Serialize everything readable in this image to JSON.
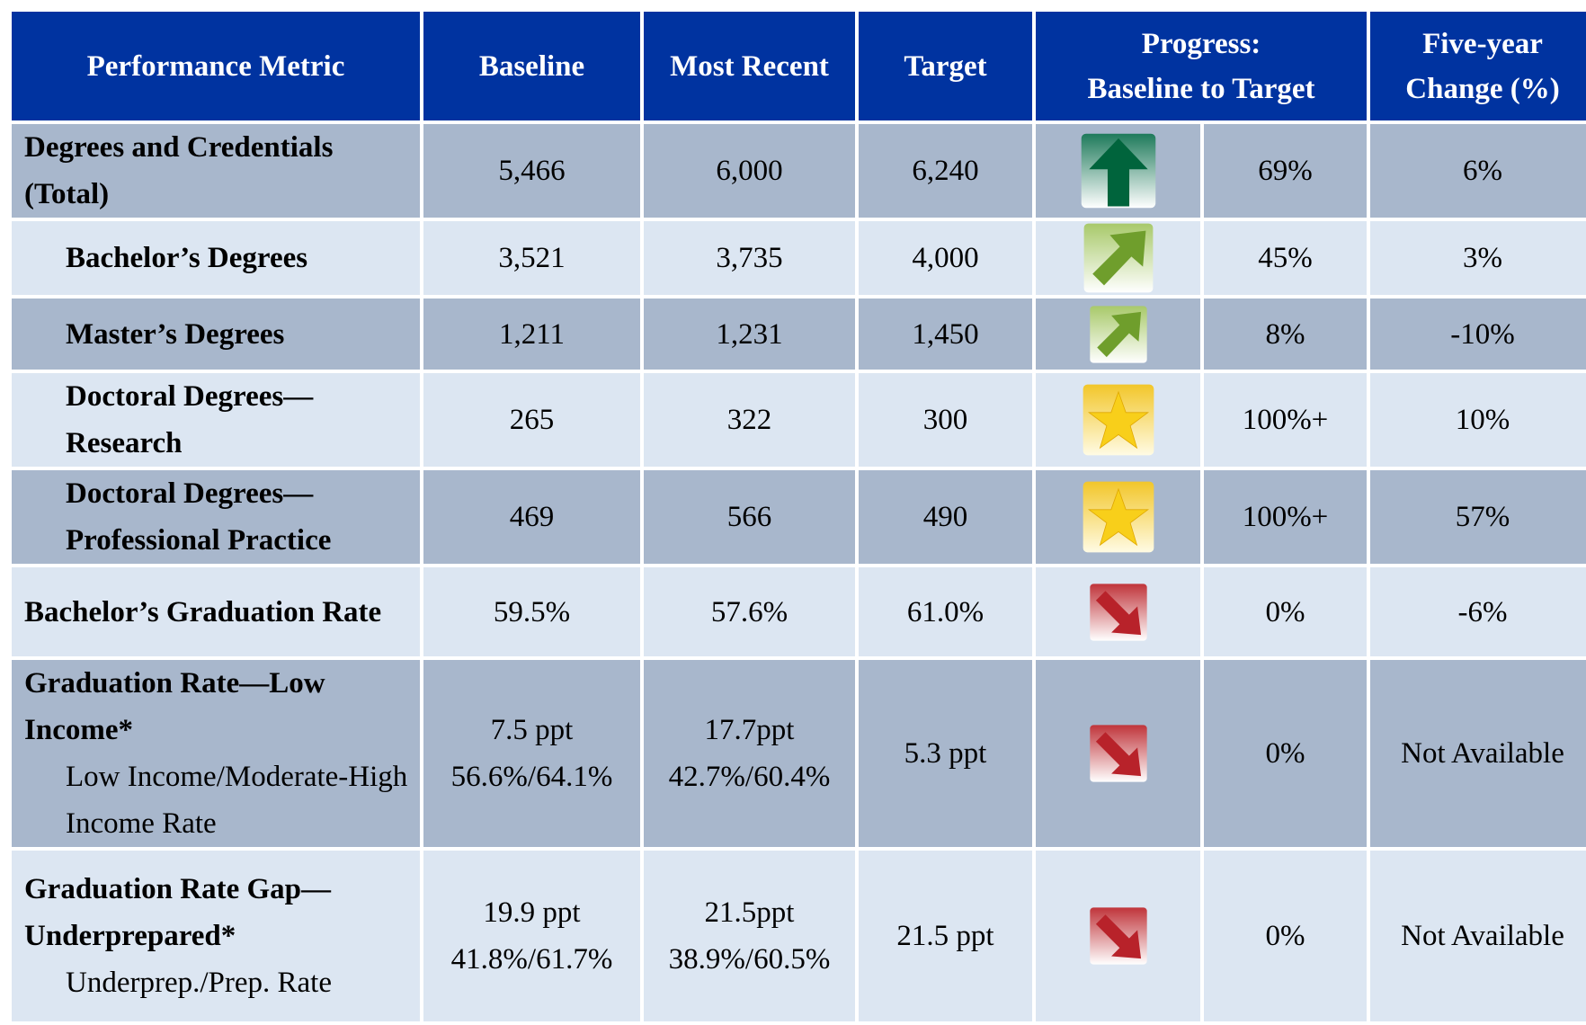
{
  "header": {
    "metric": "Performance Metric",
    "baseline": "Baseline",
    "recent": "Most Recent",
    "target": "Target",
    "progress": [
      "Progress:",
      "Baseline to Target"
    ],
    "change": [
      "Five-year",
      "Change (%)"
    ]
  },
  "rows": [
    {
      "metric": "Degrees and Credentials (Total)",
      "baseline": "5,466",
      "recent": "6,000",
      "target": "6,240",
      "progress": "69%",
      "change": "6%"
    },
    {
      "metric": "Bachelor’s Degrees",
      "baseline": "3,521",
      "recent": "3,735",
      "target": "4,000",
      "progress": "45%",
      "change": "3%"
    },
    {
      "metric": "Master’s Degrees",
      "baseline": "1,211",
      "recent": "1,231",
      "target": "1,450",
      "progress": "8%",
      "change": "-10%"
    },
    {
      "metric": "Doctoral Degrees—Research",
      "baseline": "265",
      "recent": "322",
      "target": "300",
      "progress": "100%+",
      "change": "10%"
    },
    {
      "metric": "Doctoral Degrees—Professional Practice",
      "baseline": "469",
      "recent": "566",
      "target": "490",
      "progress": "100%+",
      "change": "57%"
    },
    {
      "metric": "Bachelor’s Graduation Rate",
      "baseline": "59.5%",
      "recent": "57.6%",
      "target": "61.0%",
      "progress": "0%",
      "change": "-6%"
    },
    {
      "metric": "Graduation Rate—Low Income*",
      "note": "Low Income/Moderate-High Income Rate",
      "baseline": [
        "7.5 ppt",
        "56.6%/64.1%"
      ],
      "recent": [
        "17.7ppt",
        "42.7%/60.4%"
      ],
      "target": "5.3 ppt",
      "progress": "0%",
      "change": "Not Available"
    },
    {
      "metric": "Graduation Rate  Gap—Underprepared*",
      "note": "Underprep./Prep. Rate",
      "baseline": [
        "19.9 ppt",
        "41.8%/61.7%"
      ],
      "recent": [
        "21.5ppt",
        "38.9%/60.5%"
      ],
      "target": "21.5 ppt",
      "progress": "0%",
      "change": "Not Available"
    }
  ]
}
